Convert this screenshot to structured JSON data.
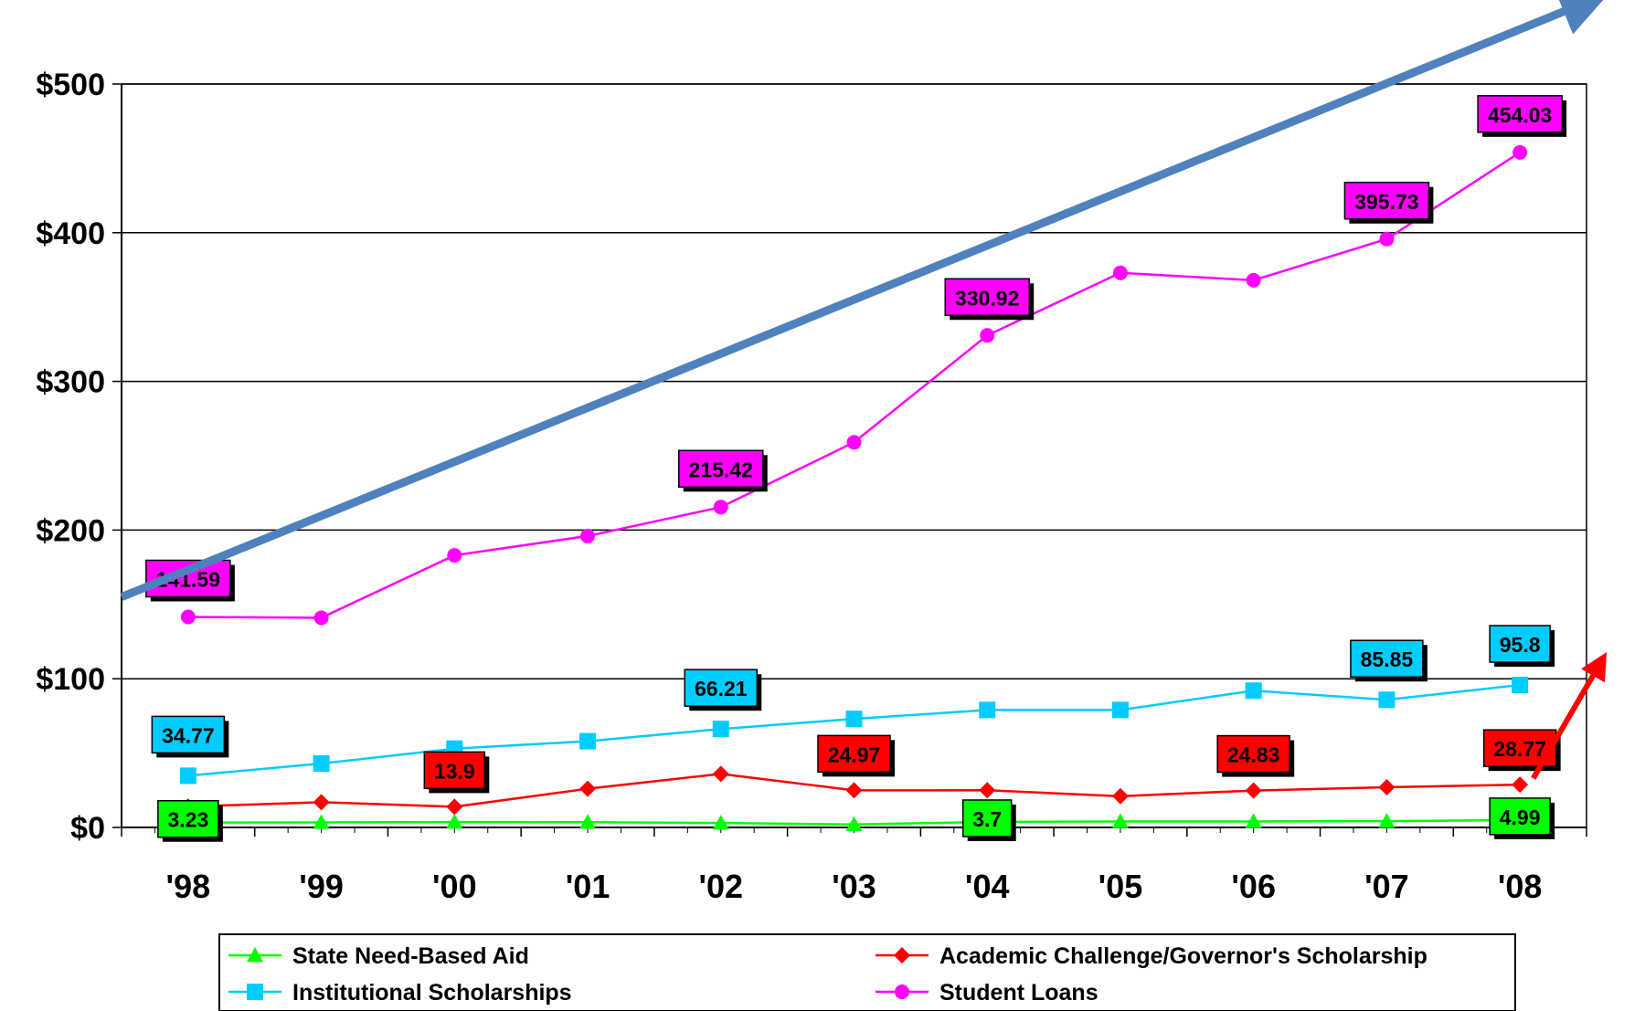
{
  "chart_data": {
    "type": "line",
    "categories": [
      "'98",
      "'99",
      "'00",
      "'01",
      "'02",
      "'03",
      "'04",
      "'05",
      "'06",
      "'07",
      "'08"
    ],
    "ylim": [
      0,
      500
    ],
    "yticks": [
      0,
      100,
      200,
      300,
      400,
      500
    ],
    "ytick_labels": [
      "$0",
      "$100",
      "$200",
      "$300",
      "$400",
      "$500"
    ],
    "grid": "horizontal",
    "legend": "bottom",
    "series": [
      {
        "name": "State Need-Based Aid",
        "color": "#00ff00",
        "marker": "triangle",
        "values": [
          3.23,
          3.4,
          3.6,
          3.5,
          3.0,
          2.0,
          3.7,
          4.0,
          4.0,
          4.2,
          4.99
        ],
        "labels": [
          {
            "index": 0,
            "text": "3.23"
          },
          {
            "index": 6,
            "text": "3.7"
          },
          {
            "index": 10,
            "text": "4.99"
          }
        ],
        "label_fill": "#00ff00"
      },
      {
        "name": "Academic Challenge/Governor's Scholarship",
        "color": "#ff0000",
        "marker": "diamond",
        "values": [
          14,
          17,
          13.9,
          26,
          36,
          24.97,
          25,
          21,
          24.83,
          27,
          28.77
        ],
        "labels": [
          {
            "index": 2,
            "text": "13.9"
          },
          {
            "index": 5,
            "text": "24.97"
          },
          {
            "index": 8,
            "text": "24.83"
          },
          {
            "index": 10,
            "text": "28.77"
          }
        ],
        "label_fill": "#ff0000"
      },
      {
        "name": "Institutional Scholarships",
        "color": "#00ccff",
        "marker": "square",
        "values": [
          34.77,
          43,
          53,
          58,
          66.21,
          73,
          79,
          79,
          92,
          85.85,
          95.8
        ],
        "labels": [
          {
            "index": 0,
            "text": "34.77"
          },
          {
            "index": 4,
            "text": "66.21"
          },
          {
            "index": 9,
            "text": "85.85"
          },
          {
            "index": 10,
            "text": "95.8"
          }
        ],
        "label_fill": "#00ccff"
      },
      {
        "name": "Student Loans",
        "color": "#ff00ff",
        "marker": "circle",
        "values": [
          141.59,
          141,
          183,
          196,
          215.42,
          259,
          330.92,
          373,
          368,
          395.73,
          454.03
        ],
        "labels": [
          {
            "index": 0,
            "text": "141.59"
          },
          {
            "index": 4,
            "text": "215.42"
          },
          {
            "index": 6,
            "text": "330.92"
          },
          {
            "index": 9,
            "text": "395.73"
          },
          {
            "index": 10,
            "text": "454.03"
          }
        ],
        "label_fill": "#ff00ff"
      }
    ],
    "annotations": [
      {
        "type": "trend-arrow",
        "color": "#4f81bd",
        "from": {
          "x": -0.5,
          "y": 155
        },
        "to": {
          "x": 10.5,
          "y": 555
        }
      },
      {
        "type": "trend-arrow",
        "color": "#ff0000",
        "from": {
          "x": 10.1,
          "y": 33
        },
        "to": {
          "x": 10.6,
          "y": 110
        }
      }
    ]
  }
}
